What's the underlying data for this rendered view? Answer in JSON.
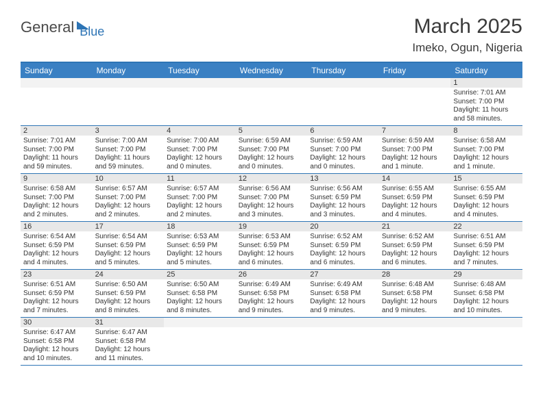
{
  "logo": {
    "general": "General",
    "blue": "Blue"
  },
  "title": "March 2025",
  "location": "Imeko, Ogun, Nigeria",
  "day_headers": [
    "Sunday",
    "Monday",
    "Tuesday",
    "Wednesday",
    "Thursday",
    "Friday",
    "Saturday"
  ],
  "colors": {
    "header_bg": "#3a80c3",
    "rule": "#2d74b5",
    "daynum_bg": "#e8e8e8",
    "text": "#333333"
  },
  "weeks": [
    [
      {
        "n": "",
        "sr": "",
        "ss": "",
        "dl": ""
      },
      {
        "n": "",
        "sr": "",
        "ss": "",
        "dl": ""
      },
      {
        "n": "",
        "sr": "",
        "ss": "",
        "dl": ""
      },
      {
        "n": "",
        "sr": "",
        "ss": "",
        "dl": ""
      },
      {
        "n": "",
        "sr": "",
        "ss": "",
        "dl": ""
      },
      {
        "n": "",
        "sr": "",
        "ss": "",
        "dl": ""
      },
      {
        "n": "1",
        "sr": "Sunrise: 7:01 AM",
        "ss": "Sunset: 7:00 PM",
        "dl": "Daylight: 11 hours and 58 minutes."
      }
    ],
    [
      {
        "n": "2",
        "sr": "Sunrise: 7:01 AM",
        "ss": "Sunset: 7:00 PM",
        "dl": "Daylight: 11 hours and 59 minutes."
      },
      {
        "n": "3",
        "sr": "Sunrise: 7:00 AM",
        "ss": "Sunset: 7:00 PM",
        "dl": "Daylight: 11 hours and 59 minutes."
      },
      {
        "n": "4",
        "sr": "Sunrise: 7:00 AM",
        "ss": "Sunset: 7:00 PM",
        "dl": "Daylight: 12 hours and 0 minutes."
      },
      {
        "n": "5",
        "sr": "Sunrise: 6:59 AM",
        "ss": "Sunset: 7:00 PM",
        "dl": "Daylight: 12 hours and 0 minutes."
      },
      {
        "n": "6",
        "sr": "Sunrise: 6:59 AM",
        "ss": "Sunset: 7:00 PM",
        "dl": "Daylight: 12 hours and 0 minutes."
      },
      {
        "n": "7",
        "sr": "Sunrise: 6:59 AM",
        "ss": "Sunset: 7:00 PM",
        "dl": "Daylight: 12 hours and 1 minute."
      },
      {
        "n": "8",
        "sr": "Sunrise: 6:58 AM",
        "ss": "Sunset: 7:00 PM",
        "dl": "Daylight: 12 hours and 1 minute."
      }
    ],
    [
      {
        "n": "9",
        "sr": "Sunrise: 6:58 AM",
        "ss": "Sunset: 7:00 PM",
        "dl": "Daylight: 12 hours and 2 minutes."
      },
      {
        "n": "10",
        "sr": "Sunrise: 6:57 AM",
        "ss": "Sunset: 7:00 PM",
        "dl": "Daylight: 12 hours and 2 minutes."
      },
      {
        "n": "11",
        "sr": "Sunrise: 6:57 AM",
        "ss": "Sunset: 7:00 PM",
        "dl": "Daylight: 12 hours and 2 minutes."
      },
      {
        "n": "12",
        "sr": "Sunrise: 6:56 AM",
        "ss": "Sunset: 7:00 PM",
        "dl": "Daylight: 12 hours and 3 minutes."
      },
      {
        "n": "13",
        "sr": "Sunrise: 6:56 AM",
        "ss": "Sunset: 6:59 PM",
        "dl": "Daylight: 12 hours and 3 minutes."
      },
      {
        "n": "14",
        "sr": "Sunrise: 6:55 AM",
        "ss": "Sunset: 6:59 PM",
        "dl": "Daylight: 12 hours and 4 minutes."
      },
      {
        "n": "15",
        "sr": "Sunrise: 6:55 AM",
        "ss": "Sunset: 6:59 PM",
        "dl": "Daylight: 12 hours and 4 minutes."
      }
    ],
    [
      {
        "n": "16",
        "sr": "Sunrise: 6:54 AM",
        "ss": "Sunset: 6:59 PM",
        "dl": "Daylight: 12 hours and 4 minutes."
      },
      {
        "n": "17",
        "sr": "Sunrise: 6:54 AM",
        "ss": "Sunset: 6:59 PM",
        "dl": "Daylight: 12 hours and 5 minutes."
      },
      {
        "n": "18",
        "sr": "Sunrise: 6:53 AM",
        "ss": "Sunset: 6:59 PM",
        "dl": "Daylight: 12 hours and 5 minutes."
      },
      {
        "n": "19",
        "sr": "Sunrise: 6:53 AM",
        "ss": "Sunset: 6:59 PM",
        "dl": "Daylight: 12 hours and 6 minutes."
      },
      {
        "n": "20",
        "sr": "Sunrise: 6:52 AM",
        "ss": "Sunset: 6:59 PM",
        "dl": "Daylight: 12 hours and 6 minutes."
      },
      {
        "n": "21",
        "sr": "Sunrise: 6:52 AM",
        "ss": "Sunset: 6:59 PM",
        "dl": "Daylight: 12 hours and 6 minutes."
      },
      {
        "n": "22",
        "sr": "Sunrise: 6:51 AM",
        "ss": "Sunset: 6:59 PM",
        "dl": "Daylight: 12 hours and 7 minutes."
      }
    ],
    [
      {
        "n": "23",
        "sr": "Sunrise: 6:51 AM",
        "ss": "Sunset: 6:59 PM",
        "dl": "Daylight: 12 hours and 7 minutes."
      },
      {
        "n": "24",
        "sr": "Sunrise: 6:50 AM",
        "ss": "Sunset: 6:59 PM",
        "dl": "Daylight: 12 hours and 8 minutes."
      },
      {
        "n": "25",
        "sr": "Sunrise: 6:50 AM",
        "ss": "Sunset: 6:58 PM",
        "dl": "Daylight: 12 hours and 8 minutes."
      },
      {
        "n": "26",
        "sr": "Sunrise: 6:49 AM",
        "ss": "Sunset: 6:58 PM",
        "dl": "Daylight: 12 hours and 9 minutes."
      },
      {
        "n": "27",
        "sr": "Sunrise: 6:49 AM",
        "ss": "Sunset: 6:58 PM",
        "dl": "Daylight: 12 hours and 9 minutes."
      },
      {
        "n": "28",
        "sr": "Sunrise: 6:48 AM",
        "ss": "Sunset: 6:58 PM",
        "dl": "Daylight: 12 hours and 9 minutes."
      },
      {
        "n": "29",
        "sr": "Sunrise: 6:48 AM",
        "ss": "Sunset: 6:58 PM",
        "dl": "Daylight: 12 hours and 10 minutes."
      }
    ],
    [
      {
        "n": "30",
        "sr": "Sunrise: 6:47 AM",
        "ss": "Sunset: 6:58 PM",
        "dl": "Daylight: 12 hours and 10 minutes."
      },
      {
        "n": "31",
        "sr": "Sunrise: 6:47 AM",
        "ss": "Sunset: 6:58 PM",
        "dl": "Daylight: 12 hours and 11 minutes."
      },
      {
        "n": "",
        "sr": "",
        "ss": "",
        "dl": ""
      },
      {
        "n": "",
        "sr": "",
        "ss": "",
        "dl": ""
      },
      {
        "n": "",
        "sr": "",
        "ss": "",
        "dl": ""
      },
      {
        "n": "",
        "sr": "",
        "ss": "",
        "dl": ""
      },
      {
        "n": "",
        "sr": "",
        "ss": "",
        "dl": ""
      }
    ]
  ]
}
